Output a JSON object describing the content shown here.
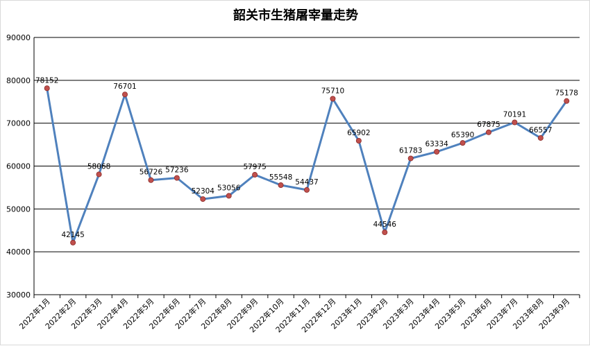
{
  "chart_data": {
    "type": "line",
    "title": "韶关市生猪屠宰量走势",
    "xlabel": "",
    "ylabel": "",
    "ylim": [
      30000,
      90000
    ],
    "yticks": [
      "30000",
      "40000",
      "50000",
      "60000",
      "70000",
      "80000",
      "90000"
    ],
    "grid": "horizontal",
    "legend": "none",
    "colors": {
      "line": "#4f81bd",
      "marker": "#c0504d",
      "grid": "#000000"
    },
    "categories": [
      "2022年1月",
      "2022年2月",
      "2022年3月",
      "2022年4月",
      "2022年5月",
      "2022年6月",
      "2022年7月",
      "2022年8月",
      "2022年9月",
      "2022年10月",
      "2022年11月",
      "2022年12月",
      "2023年1月",
      "2023年2月",
      "2023年3月",
      "2023年4月",
      "2023年5月",
      "2023年6月",
      "2023年7月",
      "2023年8月",
      "2023年9月"
    ],
    "series": [
      {
        "values": [
          78152,
          42145,
          58068,
          76701,
          56726,
          57236,
          52304,
          53056,
          57975,
          55548,
          54437,
          75710,
          65902,
          44546,
          61783,
          63334,
          65390,
          67875,
          70191,
          66557,
          75178
        ],
        "labels": [
          "78152",
          "42145",
          "58068",
          "76701",
          "56726",
          "57236",
          "52304",
          "53056",
          "57975",
          "55548",
          "54437",
          "75710",
          "65902",
          "44546",
          "61783",
          "63334",
          "65390",
          "67875",
          "70191",
          "66557",
          "75178"
        ]
      }
    ]
  }
}
